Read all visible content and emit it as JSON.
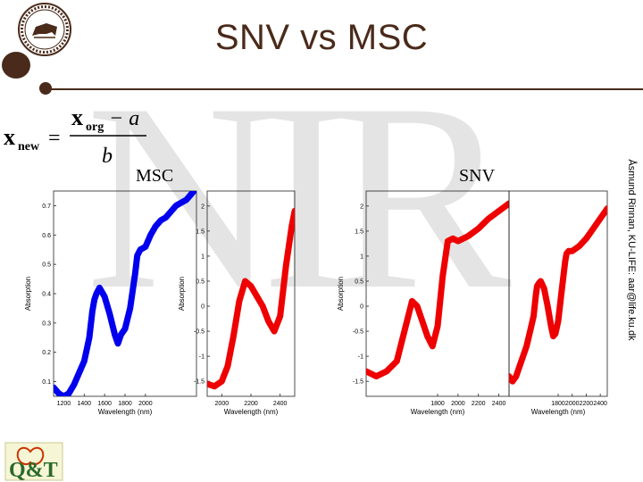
{
  "slide": {
    "title": "SNV vs MSC",
    "watermark": "NIR",
    "credit": "Åsmund Rinnan, KU-LIFE: aar@life.ku.dk",
    "logo_text": "Q&T"
  },
  "formula": {
    "lhs": "x",
    "lhs_sub": "new",
    "equals": "=",
    "num_x": "x",
    "num_sub": "org",
    "num_minus_a": "− a",
    "den": "b"
  },
  "labels": {
    "msc": "MSC",
    "snv": "SNV"
  },
  "colors": {
    "brand_brown": "#4a2a1a",
    "msc_color": "#0000ee",
    "snv_color": "#ee0000"
  },
  "chart_data": [
    {
      "type": "line",
      "xlabel": "Wavelength (nm)",
      "ylabel": "Absorption",
      "color": "#0000ee",
      "xlim": [
        1100,
        2500
      ],
      "ylim": [
        0.05,
        0.75
      ],
      "xticks": [
        1200,
        1400,
        1600,
        1800,
        2000
      ],
      "yticks": [
        0.1,
        0.2,
        0.3,
        0.4,
        0.5,
        0.6,
        0.7
      ],
      "x": [
        1100,
        1150,
        1200,
        1250,
        1300,
        1350,
        1400,
        1450,
        1480,
        1500,
        1520,
        1550,
        1600,
        1650,
        1700,
        1730,
        1760,
        1800,
        1850,
        1900,
        1920,
        1950,
        2000,
        2050,
        2100,
        2150,
        2200,
        2250,
        2300,
        2350,
        2400,
        2450,
        2500
      ],
      "y": [
        0.08,
        0.06,
        0.05,
        0.06,
        0.09,
        0.13,
        0.17,
        0.25,
        0.34,
        0.38,
        0.4,
        0.42,
        0.39,
        0.33,
        0.26,
        0.23,
        0.26,
        0.28,
        0.35,
        0.47,
        0.53,
        0.55,
        0.56,
        0.6,
        0.63,
        0.65,
        0.66,
        0.68,
        0.7,
        0.71,
        0.72,
        0.74,
        0.76
      ]
    },
    {
      "type": "line",
      "xlabel": "Wavelength (nm)",
      "ylabel": "Absorption",
      "color": "#ee0000",
      "xlim": [
        1900,
        2500
      ],
      "ylim": [
        -1.8,
        2.3
      ],
      "xticks": [
        2000,
        2200,
        2400
      ],
      "yticks": [
        -1.5,
        -1,
        -0.5,
        0,
        0.5,
        1,
        1.5,
        2
      ],
      "x": [
        1900,
        1950,
        2000,
        2040,
        2080,
        2120,
        2160,
        2200,
        2240,
        2280,
        2320,
        2360,
        2400,
        2440,
        2480,
        2500
      ],
      "y": [
        -1.55,
        -1.6,
        -1.5,
        -1.2,
        -0.6,
        0.1,
        0.5,
        0.4,
        0.2,
        0.0,
        -0.3,
        -0.5,
        -0.2,
        0.8,
        1.6,
        1.9
      ]
    },
    {
      "type": "line",
      "xlabel": "Wavelength (nm)",
      "ylabel": "Absorption",
      "color": "#ee0000",
      "xlim": [
        1100,
        2500
      ],
      "ylim": [
        -1.8,
        2.3
      ],
      "xticks": [
        1800,
        2000,
        2200,
        2400
      ],
      "yticks": [
        -1.5,
        -1,
        -0.5,
        0,
        0.5,
        1,
        1.5,
        2
      ],
      "x": [
        1100,
        1200,
        1300,
        1400,
        1450,
        1500,
        1550,
        1600,
        1650,
        1700,
        1750,
        1800,
        1850,
        1900,
        1950,
        2000,
        2100,
        2200,
        2300,
        2400,
        2500
      ],
      "y": [
        -1.3,
        -1.4,
        -1.3,
        -1.1,
        -0.7,
        -0.3,
        0.1,
        0.0,
        -0.3,
        -0.6,
        -0.8,
        -0.4,
        0.6,
        1.3,
        1.35,
        1.3,
        1.4,
        1.55,
        1.75,
        1.9,
        2.05
      ]
    },
    {
      "type": "line",
      "xlabel": "Wavelength (nm)",
      "ylabel": "",
      "color": "#ee0000",
      "xlim": [
        1100,
        2500
      ],
      "ylim": [
        -1.8,
        2.3
      ],
      "xticks": [
        1800,
        2000,
        2200,
        2400
      ],
      "yticks": [],
      "x": [
        1100,
        1150,
        1200,
        1250,
        1300,
        1350,
        1400,
        1450,
        1480,
        1500,
        1520,
        1550,
        1600,
        1650,
        1700,
        1730,
        1760,
        1800,
        1850,
        1900,
        1920,
        1950,
        2000,
        2100,
        2200,
        2300,
        2400,
        2500
      ],
      "y": [
        -1.4,
        -1.5,
        -1.4,
        -1.2,
        -1.0,
        -0.8,
        -0.5,
        -0.2,
        0.2,
        0.4,
        0.45,
        0.5,
        0.35,
        0.0,
        -0.4,
        -0.6,
        -0.55,
        -0.3,
        0.3,
        0.9,
        1.05,
        1.1,
        1.1,
        1.2,
        1.35,
        1.55,
        1.75,
        1.95
      ]
    }
  ]
}
